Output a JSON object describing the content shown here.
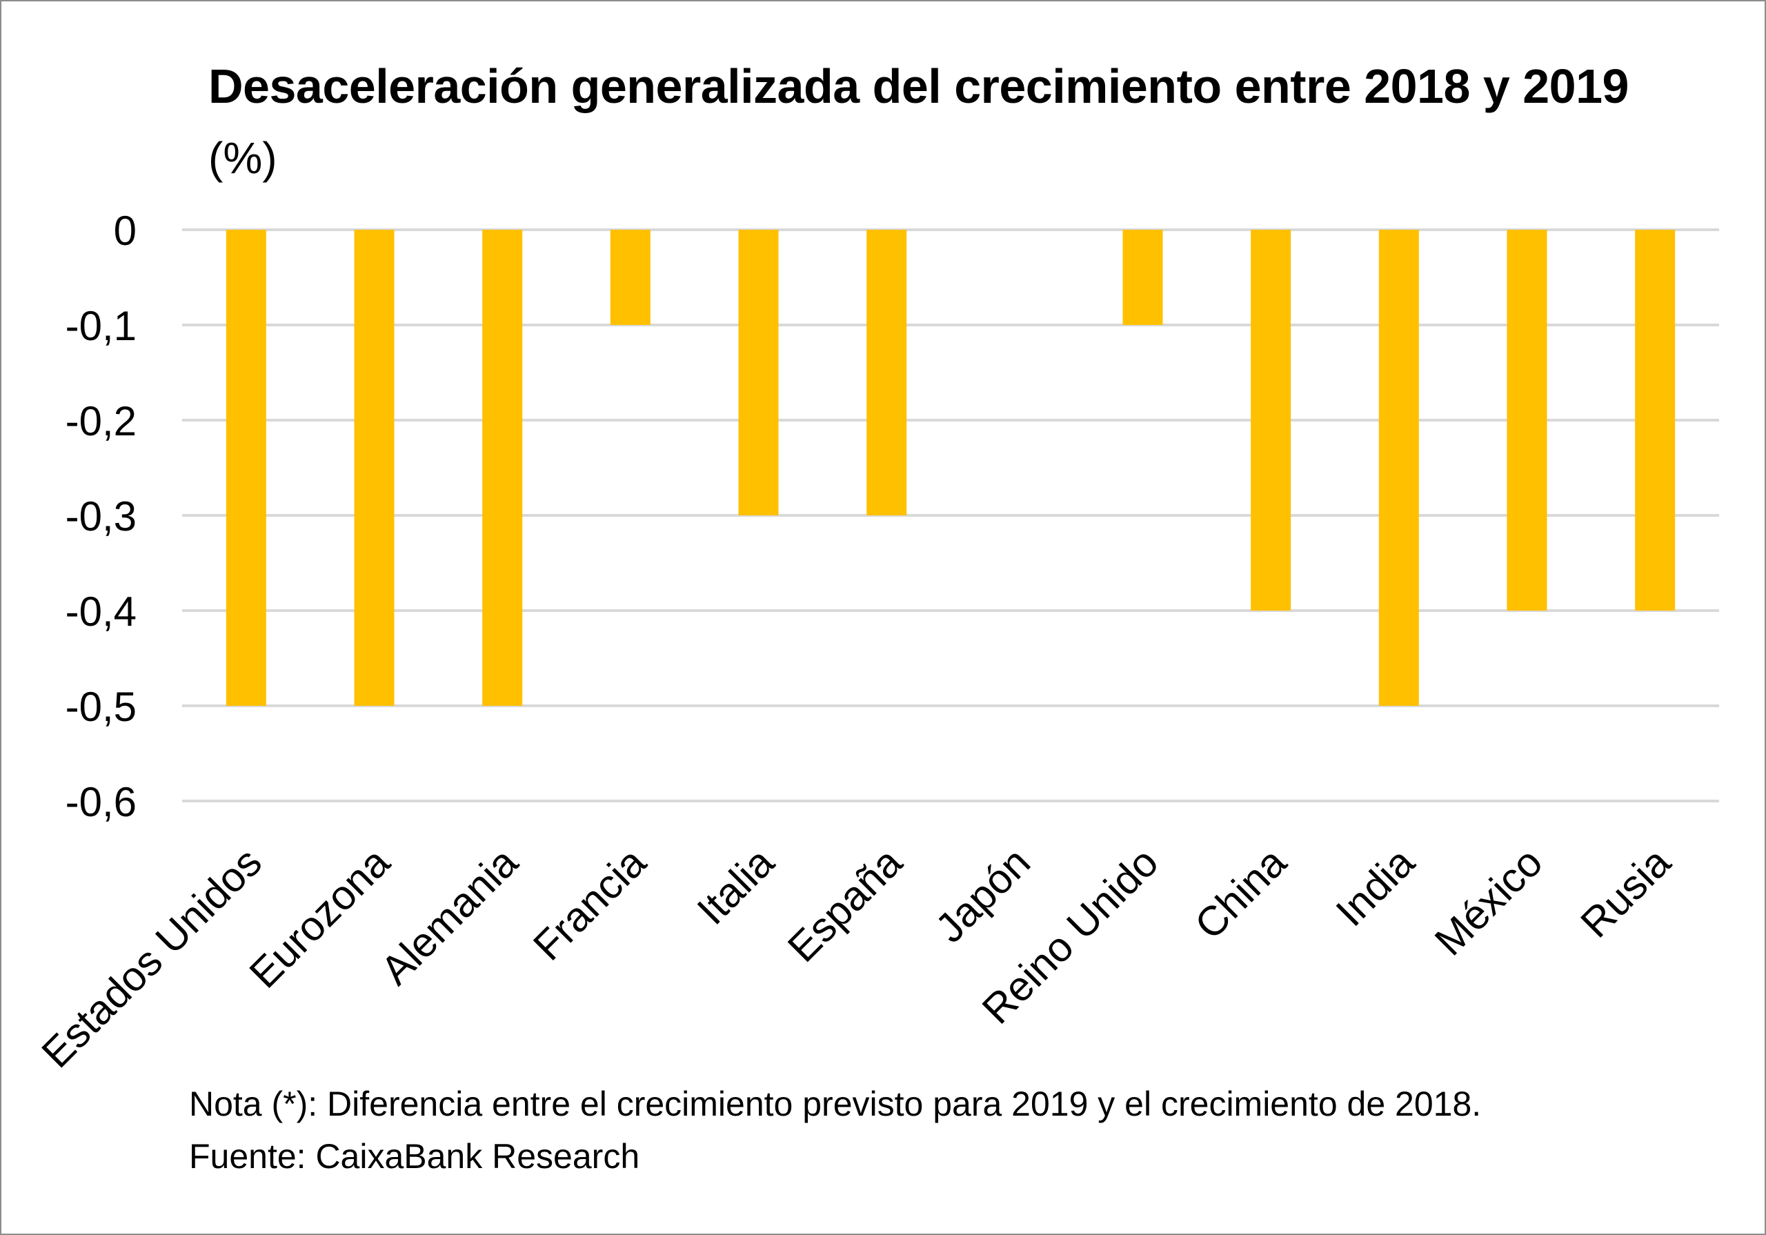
{
  "chart_data": {
    "type": "bar",
    "title": "Desaceleración generalizada del crecimiento entre 2018 y 2019",
    "subtitle": "(%)",
    "categories": [
      "Estados Unidos",
      "Eurozona",
      "Alemania",
      "Francia",
      "Italia",
      "España",
      "Japón",
      "Reino Unido",
      "China",
      "India",
      "México",
      "Rusia"
    ],
    "values": [
      -0.5,
      -0.5,
      -0.5,
      -0.1,
      -0.3,
      -0.3,
      0,
      -0.1,
      -0.4,
      -0.5,
      -0.4,
      -0.4
    ],
    "ylim": [
      -0.6,
      0
    ],
    "yticks": [
      "0",
      "-0,1",
      "-0,2",
      "-0,3",
      "-0,4",
      "-0,5",
      "-0,6"
    ],
    "grid": true,
    "legend": "none",
    "colors": {
      "bar": "#FFC000",
      "grid": "#D9D9D9",
      "text": "#000000"
    }
  },
  "notes": {
    "nota": "Nota (*): Diferencia entre el crecimiento previsto para 2019 y el crecimiento de 2018.",
    "fuente": "Fuente: CaixaBank Research"
  }
}
